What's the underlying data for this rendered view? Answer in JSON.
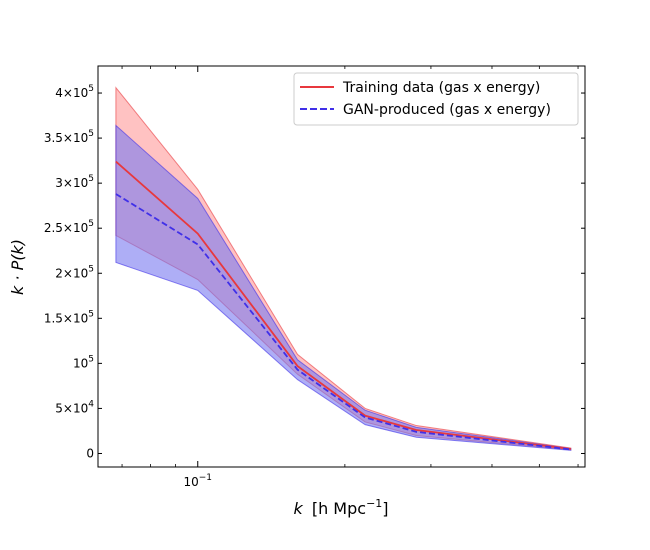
{
  "chart_data": {
    "type": "area",
    "title": "",
    "xlabel_var": "k",
    "xlabel_unit": "[h Mpc",
    "xlabel_unit_sup": "−1",
    "xlabel_unit_end": "]",
    "ylabel": "k · P(k)",
    "xscale": "log",
    "xlim": [
      0.0625,
      0.62
    ],
    "ylim": [
      -15000,
      430000
    ],
    "x": [
      0.068,
      0.1,
      0.16,
      0.22,
      0.28,
      0.58
    ],
    "series": [
      {
        "name": "Training data (gas x energy)",
        "color": "#e8383d",
        "fill": "#ff9a9a",
        "linestyle": "solid",
        "values": [
          324000,
          244000,
          97000,
          42000,
          26000,
          5000
        ],
        "lower": [
          242000,
          193000,
          88000,
          35000,
          20000,
          4000
        ],
        "upper": [
          406000,
          293000,
          110000,
          50000,
          31000,
          6000
        ]
      },
      {
        "name": "GAN-produced (gas x energy)",
        "color": "#4030e8",
        "fill": "#7878f0",
        "linestyle": "dashed",
        "values": [
          288000,
          232000,
          93000,
          40000,
          24000,
          4500
        ],
        "lower": [
          212000,
          181000,
          82000,
          32000,
          18000,
          3500
        ],
        "upper": [
          364000,
          283000,
          104000,
          48000,
          29000,
          5500
        ]
      }
    ],
    "yticks": [
      {
        "value": 0,
        "base": "0",
        "exp": ""
      },
      {
        "value": 50000,
        "base": "5×10",
        "exp": "4"
      },
      {
        "value": 100000,
        "base": "10",
        "exp": "5"
      },
      {
        "value": 150000,
        "base": "1.5×10",
        "exp": "5"
      },
      {
        "value": 200000,
        "base": "2×10",
        "exp": "5"
      },
      {
        "value": 250000,
        "base": "2.5×10",
        "exp": "5"
      },
      {
        "value": 300000,
        "base": "3×10",
        "exp": "5"
      },
      {
        "value": 350000,
        "base": "3.5×10",
        "exp": "5"
      },
      {
        "value": 400000,
        "base": "4×10",
        "exp": "5"
      }
    ],
    "xticks_major": [
      {
        "value": 0.1,
        "base": "10",
        "exp": "−1"
      }
    ],
    "xticks_minor": [
      0.07,
      0.08,
      0.09,
      0.2,
      0.3,
      0.4,
      0.5,
      0.6
    ],
    "legend_position": "top-right",
    "grid": false
  }
}
